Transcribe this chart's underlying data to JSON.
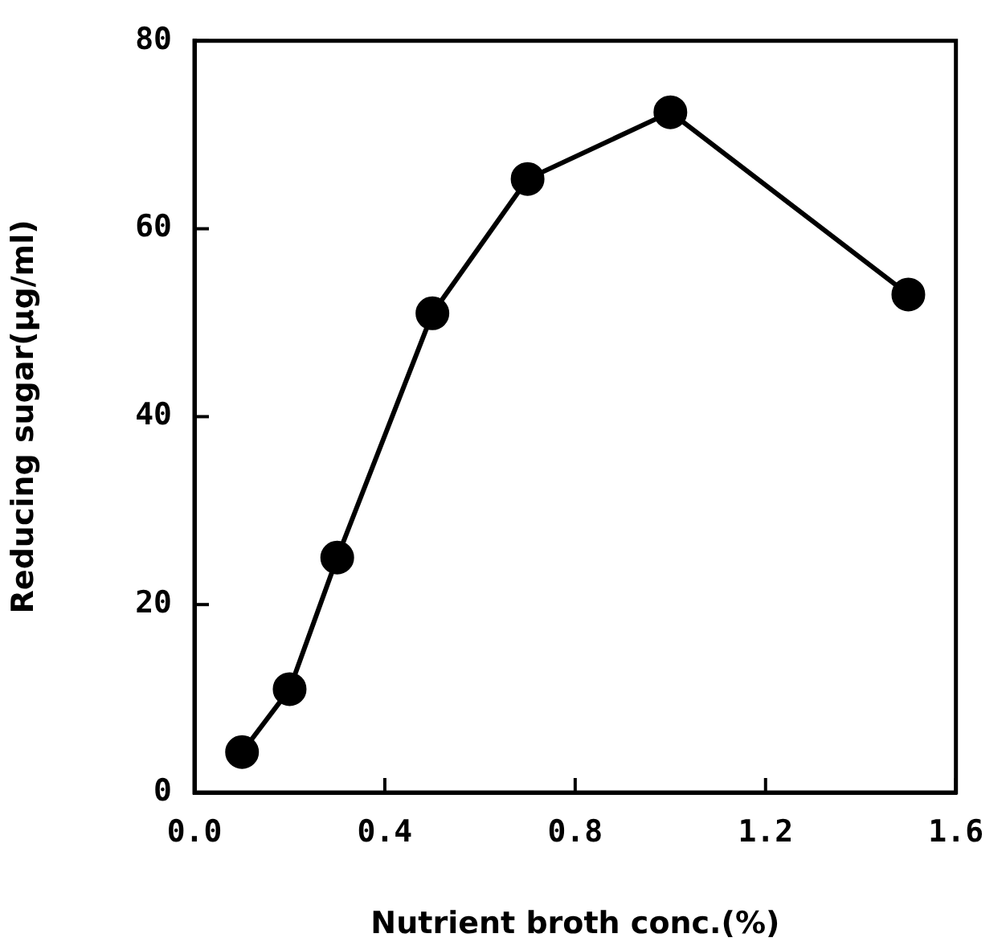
{
  "chart_data": {
    "type": "line",
    "xlabel": "Nutrient broth conc.(%)",
    "ylabel": "Reducing sugar(μg/ml)",
    "x": [
      0.1,
      0.2,
      0.3,
      0.5,
      0.7,
      1.0,
      1.5
    ],
    "series": [
      {
        "color": "#000000",
        "values": [
          4.3,
          11.0,
          25.0,
          51.0,
          65.3,
          72.4,
          53.0
        ]
      }
    ],
    "xlim": [
      0,
      1.6
    ],
    "xticks": [
      {
        "value": 0,
        "label": "0.0"
      },
      0.4,
      0.8,
      1.2,
      1.6
    ],
    "ylim": [
      0,
      80
    ],
    "yticks": [
      0,
      20,
      40,
      60,
      80
    ],
    "grid": false,
    "legend": false,
    "marker": "circle",
    "line_style": "solid"
  }
}
